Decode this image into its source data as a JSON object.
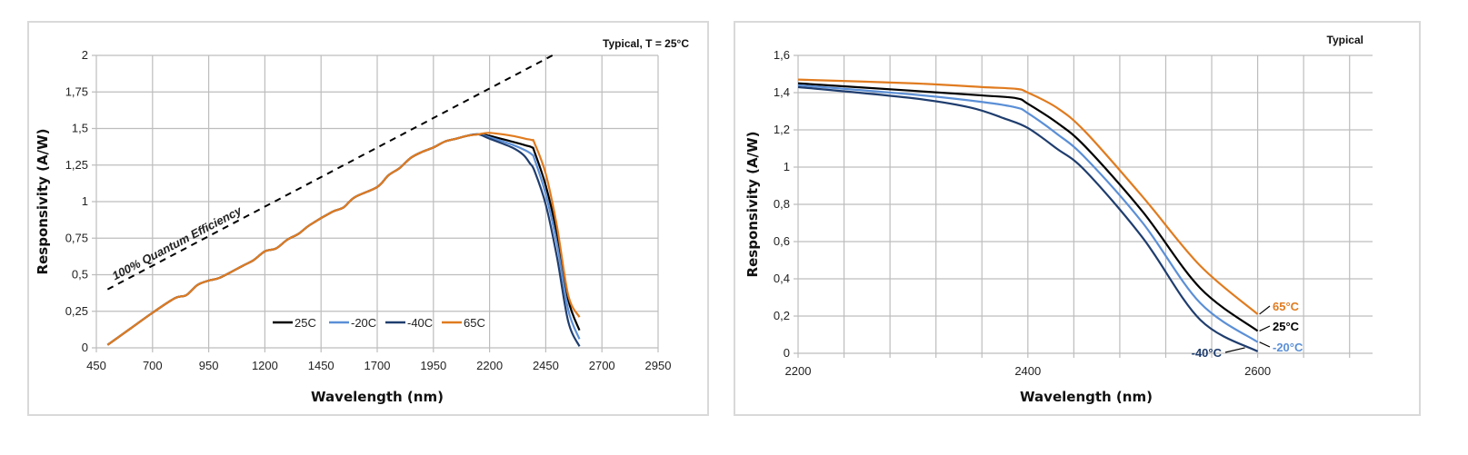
{
  "chart_data": [
    {
      "type": "line",
      "title": "Typical, T = 25°C",
      "xlabel": "Wavelength (nm)",
      "ylabel": "Responsivity (A/W)",
      "xlim": [
        450,
        2950
      ],
      "ylim": [
        0,
        2
      ],
      "xticks": [
        450,
        700,
        950,
        1200,
        1450,
        1700,
        1950,
        2200,
        2450,
        2700,
        2950
      ],
      "yticks": [
        0,
        0.25,
        0.5,
        0.75,
        1,
        1.25,
        1.5,
        1.75,
        2
      ],
      "ytick_labels": [
        "0",
        "0,25",
        "0,5",
        "0,75",
        "1",
        "1,25",
        "1,5",
        "1,75",
        "2"
      ],
      "grid": true,
      "legend_placement": "bottom-center",
      "annotation": {
        "text": "100% Quantum Efficiency",
        "x": [
          500,
          2480
        ],
        "y": [
          0.4,
          2.0
        ],
        "style": "dashed"
      },
      "common_x": [
        500,
        600,
        700,
        800,
        850,
        900,
        950,
        1000,
        1100,
        1150,
        1200,
        1250,
        1300,
        1350,
        1400,
        1500,
        1550,
        1600,
        1700,
        1750,
        1800,
        1850,
        1900,
        1950,
        2000,
        2050,
        2100,
        2150
      ],
      "common_y": [
        0.02,
        0.13,
        0.24,
        0.34,
        0.36,
        0.43,
        0.46,
        0.48,
        0.56,
        0.6,
        0.66,
        0.68,
        0.74,
        0.78,
        0.84,
        0.93,
        0.96,
        1.03,
        1.1,
        1.18,
        1.23,
        1.3,
        1.34,
        1.37,
        1.41,
        1.43,
        1.45,
        1.46
      ],
      "series": [
        {
          "name": "25C",
          "color": "#000000",
          "x": [
            2200,
            2300,
            2360,
            2390,
            2400,
            2450,
            2500,
            2550,
            2600
          ],
          "y": [
            1.45,
            1.41,
            1.385,
            1.37,
            1.34,
            1.11,
            0.78,
            0.33,
            0.12
          ]
        },
        {
          "name": "-20C",
          "color": "#5b8fd6",
          "x": [
            2200,
            2300,
            2360,
            2390,
            2400,
            2450,
            2500,
            2550,
            2600
          ],
          "y": [
            1.44,
            1.39,
            1.35,
            1.32,
            1.29,
            1.05,
            0.71,
            0.26,
            0.06
          ]
        },
        {
          "name": "-40C",
          "color": "#1f3d6e",
          "x": [
            2200,
            2300,
            2350,
            2380,
            2400,
            2450,
            2500,
            2550,
            2600
          ],
          "y": [
            1.43,
            1.37,
            1.32,
            1.26,
            1.21,
            0.98,
            0.62,
            0.18,
            0.01
          ]
        },
        {
          "name": "65C",
          "color": "#e07b1f",
          "x": [
            2200,
            2300,
            2360,
            2390,
            2400,
            2450,
            2500,
            2550,
            2600
          ],
          "y": [
            1.47,
            1.45,
            1.43,
            1.42,
            1.4,
            1.19,
            0.83,
            0.36,
            0.21
          ]
        }
      ]
    },
    {
      "type": "line",
      "title": "Typical",
      "xlabel": "Wavelength (nm)",
      "ylabel": "Responsivity (A/W)",
      "xlim": [
        2200,
        2700
      ],
      "ylim": [
        0,
        1.6
      ],
      "xticks": [
        2200,
        2400,
        2600
      ],
      "x_gridlines_every": 40,
      "yticks": [
        0,
        0.2,
        0.4,
        0.6,
        0.8,
        1,
        1.2,
        1.4,
        1.6
      ],
      "ytick_labels": [
        "0",
        "0,2",
        "0,4",
        "0,6",
        "0,8",
        "1",
        "1,2",
        "1,4",
        "1,6"
      ],
      "grid": true,
      "series": [
        {
          "name": "65°C",
          "color": "#e07b1f",
          "x": [
            2200,
            2300,
            2360,
            2390,
            2400,
            2425,
            2450,
            2500,
            2550,
            2600
          ],
          "y": [
            1.47,
            1.45,
            1.43,
            1.42,
            1.4,
            1.32,
            1.19,
            0.84,
            0.47,
            0.21
          ]
        },
        {
          "name": "25°C",
          "color": "#000000",
          "x": [
            2200,
            2300,
            2360,
            2390,
            2400,
            2425,
            2450,
            2500,
            2550,
            2600
          ],
          "y": [
            1.45,
            1.41,
            1.385,
            1.37,
            1.34,
            1.24,
            1.11,
            0.76,
            0.35,
            0.12
          ]
        },
        {
          "name": "-20°C",
          "color": "#5b8fd6",
          "x": [
            2200,
            2300,
            2360,
            2390,
            2400,
            2425,
            2450,
            2500,
            2550,
            2600
          ],
          "y": [
            1.44,
            1.39,
            1.35,
            1.32,
            1.29,
            1.18,
            1.05,
            0.7,
            0.27,
            0.06
          ]
        },
        {
          "name": "-40°C",
          "color": "#1f3d6e",
          "x": [
            2200,
            2300,
            2350,
            2380,
            2400,
            2425,
            2450,
            2500,
            2550,
            2600
          ],
          "y": [
            1.43,
            1.37,
            1.32,
            1.26,
            1.21,
            1.1,
            0.98,
            0.62,
            0.18,
            0.01
          ]
        }
      ]
    }
  ]
}
